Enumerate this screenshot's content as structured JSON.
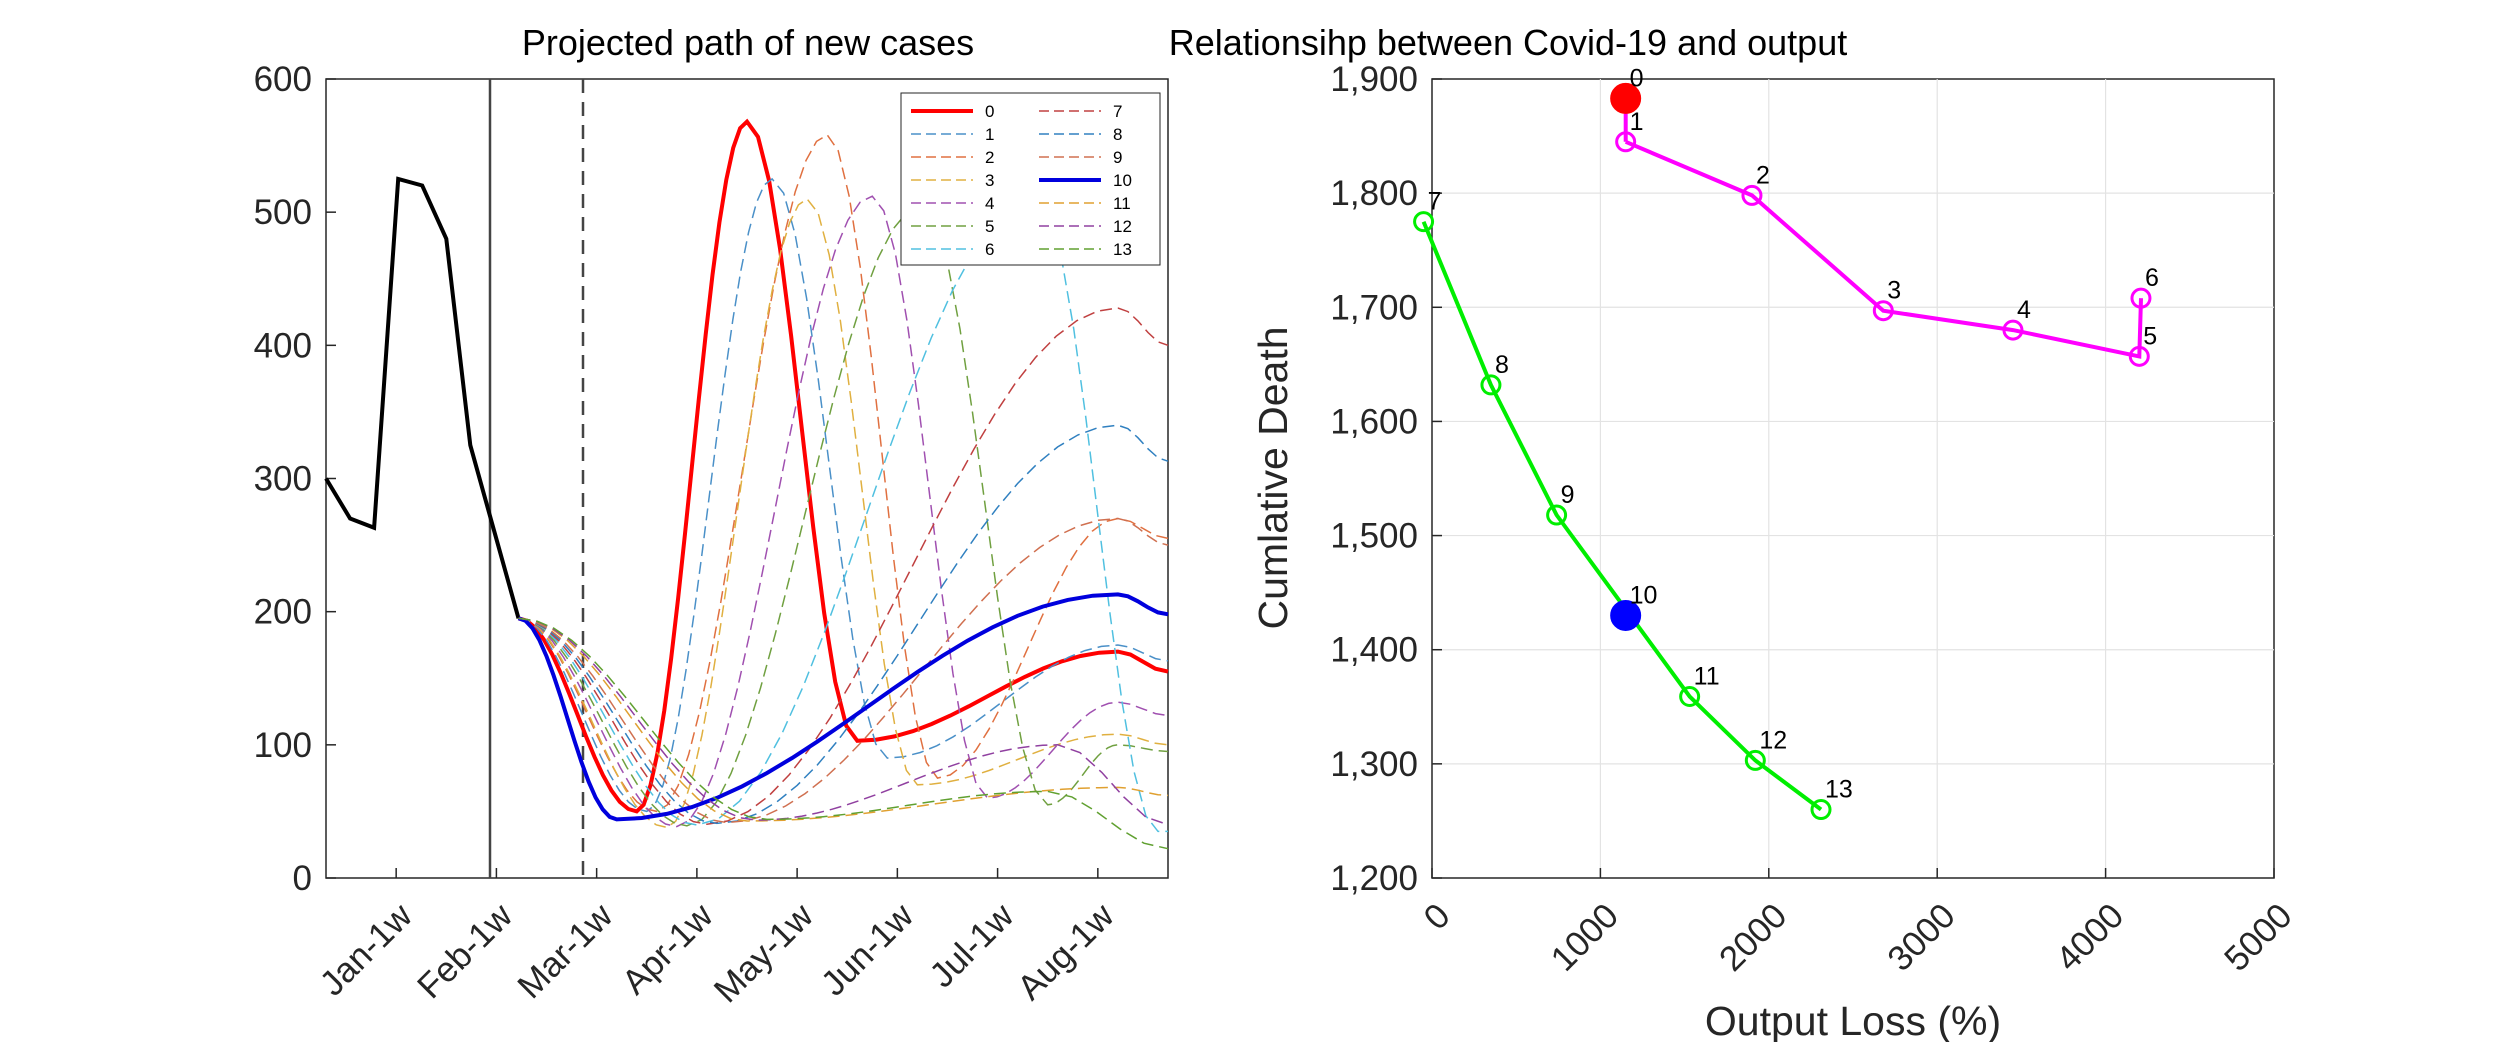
{
  "figure": {
    "left_title": "Projected path of new cases",
    "right_title": "Relationsihp between Covid-19 and output"
  },
  "chart_data": [
    {
      "type": "line",
      "title": "Projected path of new cases",
      "xlabel": "",
      "ylabel": "",
      "x_tick_labels": [
        "Jan-1w",
        "Feb-1w",
        "Mar-1w",
        "Apr-1w",
        "May-1w",
        "Jun-1w",
        "Jul-1w",
        "Aug-1w"
      ],
      "ylim": [
        0,
        600
      ],
      "y_ticks": [
        0,
        100,
        200,
        300,
        400,
        500,
        600
      ],
      "grid": false,
      "legend_position": "top-right",
      "history": {
        "color": "#000000",
        "points": [
          [
            0,
            300
          ],
          [
            0.24,
            270
          ],
          [
            0.48,
            263
          ],
          [
            0.72,
            525
          ],
          [
            0.96,
            520
          ],
          [
            1.2,
            480
          ],
          [
            1.44,
            325
          ],
          [
            1.68,
            260
          ],
          [
            1.92,
            195
          ]
        ]
      },
      "series": [
        {
          "name": "0",
          "color": "#ff0000",
          "width": 4,
          "dash": false,
          "start": 2.2,
          "peak_x": 4.2,
          "peak_y": 568,
          "bottom_x": 5.3,
          "bottom_y": 103,
          "late_x": 7.9,
          "late_y": 170,
          "end_y": 155
        },
        {
          "name": "1",
          "color": "#4a90c8",
          "width": 1.5,
          "dash": true,
          "start": 2.3,
          "peak_x": 4.45,
          "peak_y": 525,
          "bottom_x": 5.6,
          "bottom_y": 90,
          "late_x": 7.9,
          "late_y": 175,
          "end_y": 163
        },
        {
          "name": "2",
          "color": "#e07040",
          "width": 1.5,
          "dash": true,
          "start": 2.4,
          "peak_x": 5.0,
          "peak_y": 558,
          "bottom_x": 6.1,
          "bottom_y": 75,
          "late_x": 7.9,
          "late_y": 270,
          "end_y": 255
        },
        {
          "name": "3",
          "color": "#e0b040",
          "width": 1.5,
          "dash": true,
          "start": 2.5,
          "peak_x": 4.8,
          "peak_y": 510,
          "bottom_x": 5.9,
          "bottom_y": 70,
          "late_x": 7.9,
          "late_y": 108,
          "end_y": 100
        },
        {
          "name": "4",
          "color": "#a050b0",
          "width": 1.5,
          "dash": true,
          "start": 2.6,
          "peak_x": 5.45,
          "peak_y": 512,
          "bottom_x": 6.6,
          "bottom_y": 60,
          "late_x": 7.9,
          "late_y": 132,
          "end_y": 122
        },
        {
          "name": "5",
          "color": "#70a040",
          "width": 1.5,
          "dash": true,
          "start": 2.7,
          "peak_x": 5.95,
          "peak_y": 505,
          "bottom_x": 7.2,
          "bottom_y": 55,
          "late_x": 7.9,
          "late_y": 100,
          "end_y": 95
        },
        {
          "name": "6",
          "color": "#50c0e0",
          "width": 1.5,
          "dash": true,
          "start": 2.8,
          "peak_x": 7.1,
          "peak_y": 510,
          "bottom_x": 8.3,
          "bottom_y": 35,
          "late_x": 8.3,
          "late_y": 35,
          "end_y": 35
        },
        {
          "name": "7",
          "color": "#c04040",
          "width": 1.5,
          "dash": true,
          "start": 2.9,
          "peak_x": 7.9,
          "peak_y": 428,
          "bottom_x": 8.4,
          "bottom_y": 400,
          "late_x": 7.9,
          "late_y": 428,
          "end_y": 400
        },
        {
          "name": "8",
          "color": "#3080c0",
          "width": 1.5,
          "dash": true,
          "start": 3.0,
          "peak_x": 7.9,
          "peak_y": 340,
          "bottom_x": 8.4,
          "bottom_y": 313,
          "late_x": 7.9,
          "late_y": 340,
          "end_y": 313
        },
        {
          "name": "9",
          "color": "#d07050",
          "width": 1.5,
          "dash": true,
          "start": 3.1,
          "peak_x": 7.9,
          "peak_y": 270,
          "bottom_x": 8.4,
          "bottom_y": 250,
          "late_x": 7.9,
          "late_y": 270,
          "end_y": 250
        },
        {
          "name": "10",
          "color": "#0000dd",
          "width": 4,
          "dash": false,
          "start": 2.0,
          "peak_x": 7.9,
          "peak_y": 213,
          "bottom_x": 8.4,
          "bottom_y": 198,
          "late_x": 7.9,
          "late_y": 213,
          "end_y": 198
        },
        {
          "name": "11",
          "color": "#e0a030",
          "width": 1.5,
          "dash": true,
          "start": 3.3,
          "peak_x": 7.9,
          "peak_y": 68,
          "bottom_x": 8.4,
          "bottom_y": 62,
          "late_x": 7.9,
          "late_y": 68,
          "end_y": 62
        },
        {
          "name": "12",
          "color": "#9040a0",
          "width": 1.5,
          "dash": true,
          "start": 3.4,
          "peak_x": 7.3,
          "peak_y": 100,
          "bottom_x": 8.4,
          "bottom_y": 40,
          "late_x": 7.3,
          "late_y": 100,
          "end_y": 40
        },
        {
          "name": "13",
          "color": "#60a030",
          "width": 1.5,
          "dash": true,
          "start": 3.5,
          "peak_x": 7.2,
          "peak_y": 65,
          "bottom_x": 8.4,
          "bottom_y": 22,
          "late_x": 7.2,
          "late_y": 65,
          "end_y": 22
        }
      ]
    },
    {
      "type": "scatter",
      "title": "Relationsihp between Covid-19 and output",
      "xlabel": "Output Loss (%)",
      "ylabel": "Cumlative Death",
      "xlim": [
        0,
        5000
      ],
      "ylim": [
        1200,
        1900
      ],
      "x_ticks": [
        0,
        1000,
        2000,
        3000,
        4000,
        5000
      ],
      "y_ticks": [
        1200,
        1300,
        1400,
        1500,
        1600,
        1700,
        1800,
        1900
      ],
      "y_tick_labels": [
        "1,200",
        "1,300",
        "1,400",
        "1,500",
        "1,600",
        "1,700",
        "1,800",
        "1,900"
      ],
      "grid": true,
      "points": [
        {
          "label": "0",
          "x": 1150,
          "y": 1883,
          "marker": "filled",
          "color": "#ff0000"
        },
        {
          "label": "1",
          "x": 1150,
          "y": 1845,
          "marker": "open",
          "color": "#ff00ff"
        },
        {
          "label": "2",
          "x": 1900,
          "y": 1798,
          "marker": "open",
          "color": "#ff00ff"
        },
        {
          "label": "3",
          "x": 2680,
          "y": 1697,
          "marker": "open",
          "color": "#ff00ff"
        },
        {
          "label": "4",
          "x": 3450,
          "y": 1680,
          "marker": "open",
          "color": "#ff00ff"
        },
        {
          "label": "5",
          "x": 4200,
          "y": 1657,
          "marker": "open",
          "color": "#ff00ff"
        },
        {
          "label": "6",
          "x": 4210,
          "y": 1708,
          "marker": "open",
          "color": "#ff00ff"
        },
        {
          "label": "7",
          "x": -50,
          "y": 1775,
          "marker": "open",
          "color": "#00ee00"
        },
        {
          "label": "8",
          "x": 350,
          "y": 1632,
          "marker": "open",
          "color": "#00ee00"
        },
        {
          "label": "9",
          "x": 740,
          "y": 1518,
          "marker": "open",
          "color": "#00ee00"
        },
        {
          "label": "10",
          "x": 1150,
          "y": 1430,
          "marker": "filled",
          "color": "#0000ff"
        },
        {
          "label": "11",
          "x": 1530,
          "y": 1359,
          "marker": "open",
          "color": "#00ee00"
        },
        {
          "label": "12",
          "x": 1920,
          "y": 1303,
          "marker": "open",
          "color": "#00ee00"
        },
        {
          "label": "13",
          "x": 2310,
          "y": 1260,
          "marker": "open",
          "color": "#00ee00"
        }
      ],
      "magenta_path": [
        "1",
        "2",
        "3",
        "4",
        "5",
        "6"
      ],
      "green_path": [
        "7",
        "8",
        "9",
        "11",
        "12",
        "13"
      ]
    }
  ]
}
